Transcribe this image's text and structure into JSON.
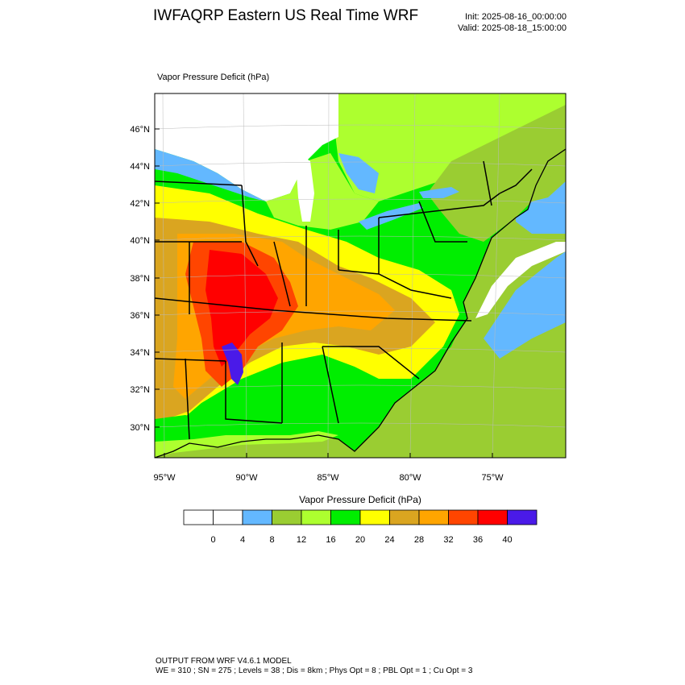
{
  "header": {
    "title": "IWFAQRP Eastern US Real Time WRF",
    "init": "Init: 2025-08-16_00:00:00",
    "valid": "Valid: 2025-08-18_15:00:00"
  },
  "field": {
    "label": "Vapor Pressure Deficit   (hPa)"
  },
  "map": {
    "lat_ticks": [
      "30°N",
      "32°N",
      "34°N",
      "36°N",
      "38°N",
      "40°N",
      "42°N",
      "44°N",
      "46°N"
    ],
    "lon_ticks": [
      "95°W",
      "90°W",
      "85°W",
      "80°W",
      "75°W"
    ]
  },
  "colorbar": {
    "title": "Vapor Pressure Deficit  (hPa)",
    "labels": [
      "0",
      "4",
      "8",
      "12",
      "16",
      "20",
      "24",
      "28",
      "32",
      "36",
      "40"
    ],
    "colors": [
      "#ffffff",
      "#ffffff",
      "#63b8ff",
      "#9acd32",
      "#adff2f",
      "#00ee00",
      "#ffff00",
      "#daa520",
      "#ffa500",
      "#ff4500",
      "#ff0000",
      "#4a1ae8"
    ],
    "ocean_color": "#9acd32",
    "coast_color": "#63b8ff"
  },
  "footer": {
    "line1": "OUTPUT FROM WRF V4.6.1 MODEL",
    "line2": "WE = 310 ; SN = 275 ; Levels = 38 ; Dis = 8km ; Phys Opt = 8 ; PBL Opt = 1 ; Cu Opt = 3"
  }
}
